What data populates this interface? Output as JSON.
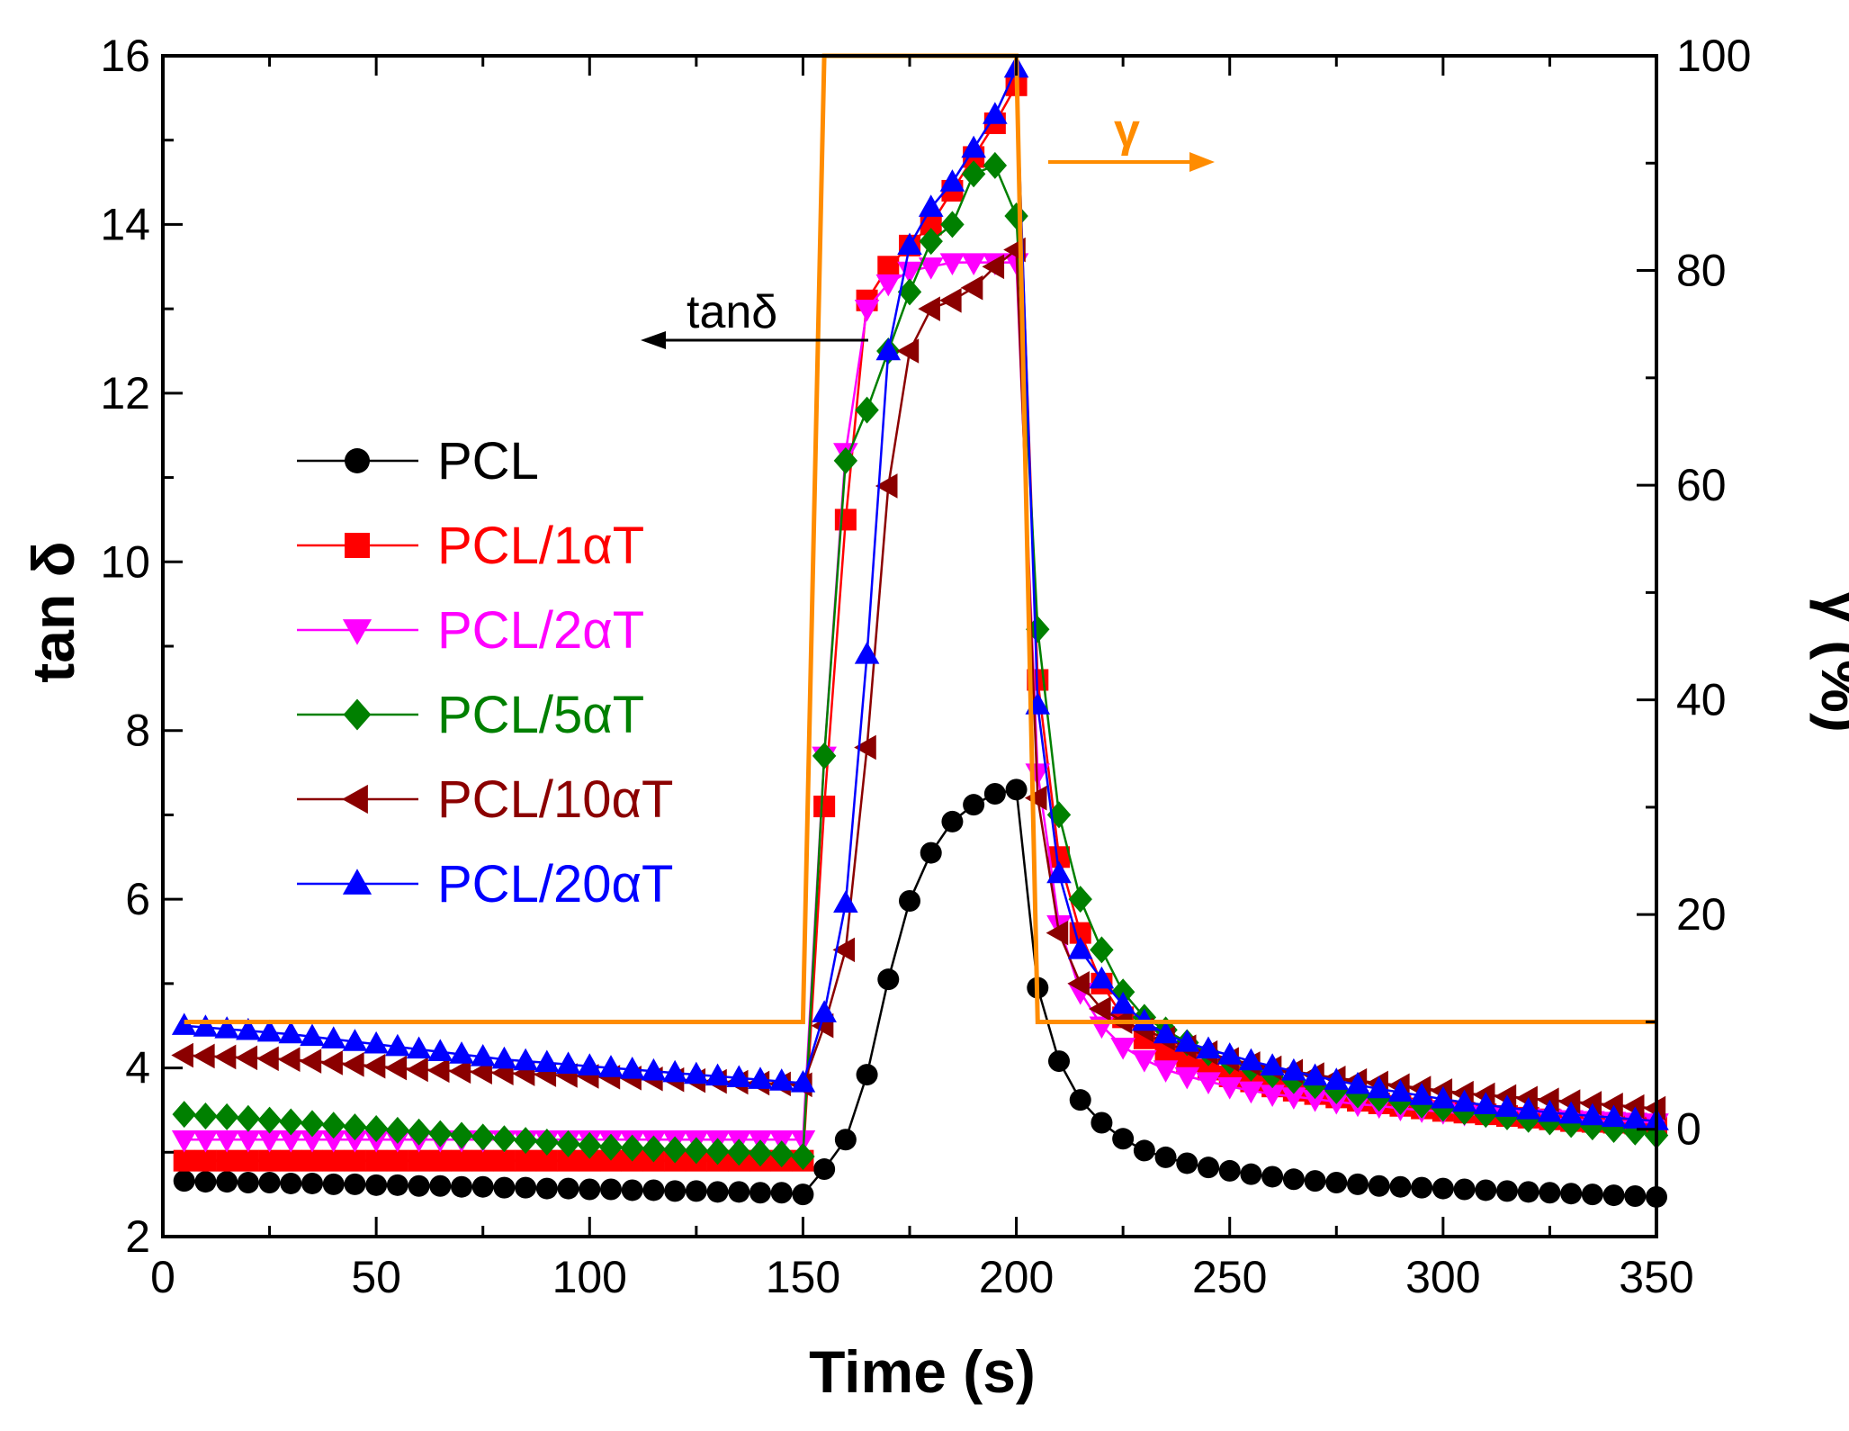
{
  "chart_data": {
    "type": "line",
    "title": "",
    "xlabel": "Time (s)",
    "ylabel": "tan δ",
    "y2label": "γ (%)",
    "xlim": [
      0,
      350
    ],
    "ylim": [
      2,
      16
    ],
    "y2lim": [
      -10,
      100
    ],
    "xticks": [
      0,
      50,
      100,
      150,
      200,
      250,
      300,
      350
    ],
    "yticks": [
      2,
      4,
      6,
      8,
      10,
      12,
      14,
      16
    ],
    "y2ticks": [
      0,
      20,
      40,
      60,
      80,
      100
    ],
    "grid": false,
    "legend_position": "left",
    "annotations": {
      "tand_label": "tanδ",
      "gamma_label": "γ"
    },
    "series": [
      {
        "name": "PCL",
        "color": "#000000",
        "marker": "circle",
        "axis": "left",
        "x": [
          5,
          10,
          15,
          20,
          25,
          30,
          35,
          40,
          45,
          50,
          55,
          60,
          65,
          70,
          75,
          80,
          85,
          90,
          95,
          100,
          105,
          110,
          115,
          120,
          125,
          130,
          135,
          140,
          145,
          150,
          155,
          160,
          165,
          170,
          175,
          180,
          185,
          190,
          195,
          200,
          205,
          210,
          215,
          220,
          225,
          230,
          235,
          240,
          245,
          250,
          255,
          260,
          265,
          270,
          275,
          280,
          285,
          290,
          295,
          300,
          305,
          310,
          315,
          320,
          325,
          330,
          335,
          340,
          345,
          350
        ],
        "y": [
          2.66,
          2.65,
          2.65,
          2.64,
          2.64,
          2.63,
          2.63,
          2.62,
          2.62,
          2.61,
          2.61,
          2.6,
          2.6,
          2.59,
          2.59,
          2.58,
          2.58,
          2.57,
          2.57,
          2.56,
          2.56,
          2.55,
          2.55,
          2.54,
          2.54,
          2.53,
          2.53,
          2.52,
          2.52,
          2.5,
          2.8,
          3.15,
          3.92,
          5.05,
          5.98,
          6.55,
          6.92,
          7.12,
          7.25,
          7.3,
          4.95,
          4.08,
          3.62,
          3.35,
          3.16,
          3.02,
          2.94,
          2.87,
          2.82,
          2.78,
          2.74,
          2.71,
          2.68,
          2.66,
          2.64,
          2.62,
          2.6,
          2.59,
          2.58,
          2.57,
          2.56,
          2.55,
          2.54,
          2.53,
          2.52,
          2.51,
          2.5,
          2.49,
          2.48,
          2.47
        ]
      },
      {
        "name": "PCL/1αT",
        "color": "#ff0000",
        "marker": "square",
        "axis": "left",
        "x": [
          5,
          10,
          15,
          20,
          25,
          30,
          35,
          40,
          45,
          50,
          55,
          60,
          65,
          70,
          75,
          80,
          85,
          90,
          95,
          100,
          105,
          110,
          115,
          120,
          125,
          130,
          135,
          140,
          145,
          150,
          155,
          160,
          165,
          170,
          175,
          180,
          185,
          190,
          195,
          200,
          205,
          210,
          215,
          220,
          225,
          230,
          235,
          240,
          245,
          250,
          255,
          260,
          265,
          270,
          275,
          280,
          285,
          290,
          295,
          300,
          305,
          310,
          315,
          320,
          325,
          330,
          335,
          340,
          345,
          350
        ],
        "y": [
          2.9,
          2.9,
          2.9,
          2.9,
          2.9,
          2.9,
          2.9,
          2.9,
          2.9,
          2.9,
          2.9,
          2.9,
          2.9,
          2.9,
          2.9,
          2.9,
          2.9,
          2.9,
          2.9,
          2.9,
          2.9,
          2.9,
          2.9,
          2.9,
          2.9,
          2.9,
          2.9,
          2.9,
          2.9,
          2.9,
          7.1,
          10.5,
          13.1,
          13.5,
          13.75,
          14.0,
          14.4,
          14.8,
          15.2,
          15.65,
          8.6,
          6.5,
          5.6,
          5.0,
          4.6,
          4.35,
          4.2,
          4.08,
          3.98,
          3.9,
          3.84,
          3.78,
          3.73,
          3.69,
          3.65,
          3.61,
          3.58,
          3.55,
          3.52,
          3.49,
          3.47,
          3.45,
          3.43,
          3.41,
          3.39,
          3.37,
          3.36,
          3.35,
          3.34,
          3.33
        ]
      },
      {
        "name": "PCL/2αT",
        "color": "#ff00ff",
        "marker": "triangle-down",
        "axis": "left",
        "x": [
          5,
          10,
          15,
          20,
          25,
          30,
          35,
          40,
          45,
          50,
          55,
          60,
          65,
          70,
          75,
          80,
          85,
          90,
          95,
          100,
          105,
          110,
          115,
          120,
          125,
          130,
          135,
          140,
          145,
          150,
          155,
          160,
          165,
          170,
          175,
          180,
          185,
          190,
          195,
          200,
          205,
          210,
          215,
          220,
          225,
          230,
          235,
          240,
          245,
          250,
          255,
          260,
          265,
          270,
          275,
          280,
          285,
          290,
          295,
          300,
          305,
          310,
          315,
          320,
          325,
          330,
          335,
          340,
          345,
          350
        ],
        "y": [
          3.15,
          3.15,
          3.15,
          3.15,
          3.15,
          3.15,
          3.15,
          3.15,
          3.15,
          3.15,
          3.15,
          3.15,
          3.15,
          3.15,
          3.15,
          3.15,
          3.15,
          3.15,
          3.15,
          3.15,
          3.15,
          3.15,
          3.15,
          3.15,
          3.15,
          3.15,
          3.15,
          3.15,
          3.15,
          3.15,
          7.7,
          11.3,
          13.0,
          13.3,
          13.45,
          13.5,
          13.55,
          13.55,
          13.55,
          13.55,
          7.5,
          5.7,
          4.9,
          4.5,
          4.25,
          4.1,
          3.98,
          3.9,
          3.84,
          3.78,
          3.73,
          3.69,
          3.66,
          3.63,
          3.6,
          3.57,
          3.55,
          3.52,
          3.5,
          3.48,
          3.46,
          3.44,
          3.42,
          3.41,
          3.4,
          3.39,
          3.38,
          3.37,
          3.36,
          3.35
        ]
      },
      {
        "name": "PCL/5αT",
        "color": "#008000",
        "marker": "diamond",
        "axis": "left",
        "x": [
          5,
          10,
          15,
          20,
          25,
          30,
          35,
          40,
          45,
          50,
          55,
          60,
          65,
          70,
          75,
          80,
          85,
          90,
          95,
          100,
          105,
          110,
          115,
          120,
          125,
          130,
          135,
          140,
          145,
          150,
          155,
          160,
          165,
          170,
          175,
          180,
          185,
          190,
          195,
          200,
          205,
          210,
          215,
          220,
          225,
          230,
          235,
          240,
          245,
          250,
          255,
          260,
          265,
          270,
          275,
          280,
          285,
          290,
          295,
          300,
          305,
          310,
          315,
          320,
          325,
          330,
          335,
          340,
          345,
          350
        ],
        "y": [
          3.45,
          3.43,
          3.42,
          3.4,
          3.38,
          3.36,
          3.34,
          3.32,
          3.3,
          3.28,
          3.26,
          3.24,
          3.22,
          3.2,
          3.18,
          3.16,
          3.14,
          3.12,
          3.1,
          3.08,
          3.06,
          3.05,
          3.04,
          3.03,
          3.02,
          3.01,
          3.0,
          2.99,
          2.98,
          2.95,
          7.7,
          11.2,
          11.8,
          12.5,
          13.2,
          13.8,
          14.0,
          14.6,
          14.7,
          14.1,
          9.2,
          7.0,
          6.0,
          5.4,
          4.9,
          4.6,
          4.45,
          4.3,
          4.18,
          4.08,
          4.0,
          3.92,
          3.85,
          3.79,
          3.73,
          3.68,
          3.64,
          3.6,
          3.56,
          3.52,
          3.48,
          3.45,
          3.42,
          3.39,
          3.36,
          3.33,
          3.3,
          3.27,
          3.24,
          3.2
        ]
      },
      {
        "name": "PCL/10αT",
        "color": "#8b0000",
        "marker": "triangle-left",
        "axis": "left",
        "x": [
          5,
          10,
          15,
          20,
          25,
          30,
          35,
          40,
          45,
          50,
          55,
          60,
          65,
          70,
          75,
          80,
          85,
          90,
          95,
          100,
          105,
          110,
          115,
          120,
          125,
          130,
          135,
          140,
          145,
          150,
          155,
          160,
          165,
          170,
          175,
          180,
          185,
          190,
          195,
          200,
          205,
          210,
          215,
          220,
          225,
          230,
          235,
          240,
          245,
          250,
          255,
          260,
          265,
          270,
          275,
          280,
          285,
          290,
          295,
          300,
          305,
          310,
          315,
          320,
          325,
          330,
          335,
          340,
          345,
          350
        ],
        "y": [
          4.15,
          4.14,
          4.13,
          4.12,
          4.11,
          4.1,
          4.08,
          4.06,
          4.04,
          4.02,
          4.0,
          3.98,
          3.97,
          3.96,
          3.95,
          3.94,
          3.93,
          3.92,
          3.91,
          3.9,
          3.89,
          3.88,
          3.87,
          3.86,
          3.85,
          3.84,
          3.83,
          3.82,
          3.81,
          3.8,
          4.5,
          5.4,
          7.8,
          10.9,
          12.5,
          13.0,
          13.1,
          13.25,
          13.5,
          13.7,
          7.2,
          5.6,
          5.0,
          4.7,
          4.55,
          4.45,
          4.35,
          4.25,
          4.18,
          4.1,
          4.05,
          4.0,
          3.96,
          3.92,
          3.88,
          3.85,
          3.82,
          3.79,
          3.76,
          3.73,
          3.7,
          3.68,
          3.66,
          3.64,
          3.62,
          3.6,
          3.58,
          3.56,
          3.54,
          3.52
        ]
      },
      {
        "name": "PCL/20αT",
        "color": "#0000ff",
        "marker": "triangle-up",
        "axis": "left",
        "x": [
          5,
          10,
          15,
          20,
          25,
          30,
          35,
          40,
          45,
          50,
          55,
          60,
          65,
          70,
          75,
          80,
          85,
          90,
          95,
          100,
          105,
          110,
          115,
          120,
          125,
          130,
          135,
          140,
          145,
          150,
          155,
          160,
          165,
          170,
          175,
          180,
          185,
          190,
          195,
          200,
          205,
          210,
          215,
          220,
          225,
          230,
          235,
          240,
          245,
          250,
          255,
          260,
          265,
          270,
          275,
          280,
          285,
          290,
          295,
          300,
          305,
          310,
          315,
          320,
          325,
          330,
          335,
          340,
          345,
          350
        ],
        "y": [
          4.5,
          4.48,
          4.46,
          4.44,
          4.42,
          4.4,
          4.37,
          4.34,
          4.31,
          4.28,
          4.25,
          4.22,
          4.19,
          4.16,
          4.13,
          4.1,
          4.08,
          4.06,
          4.04,
          4.02,
          4.0,
          3.98,
          3.96,
          3.94,
          3.92,
          3.9,
          3.88,
          3.86,
          3.84,
          3.82,
          4.65,
          5.95,
          8.9,
          12.5,
          13.75,
          14.2,
          14.5,
          14.9,
          15.3,
          15.85,
          8.3,
          6.3,
          5.4,
          5.05,
          4.75,
          4.55,
          4.4,
          4.3,
          4.22,
          4.15,
          4.08,
          4.02,
          3.96,
          3.9,
          3.85,
          3.8,
          3.75,
          3.71,
          3.67,
          3.63,
          3.59,
          3.56,
          3.53,
          3.5,
          3.47,
          3.45,
          3.43,
          3.41,
          3.39,
          3.37
        ]
      },
      {
        "name": "γ",
        "color": "#ff8c00",
        "marker": "none",
        "axis": "right",
        "x": [
          5,
          150,
          155,
          200,
          205,
          350
        ],
        "y": [
          10,
          10,
          100,
          100,
          10,
          10
        ]
      }
    ]
  }
}
